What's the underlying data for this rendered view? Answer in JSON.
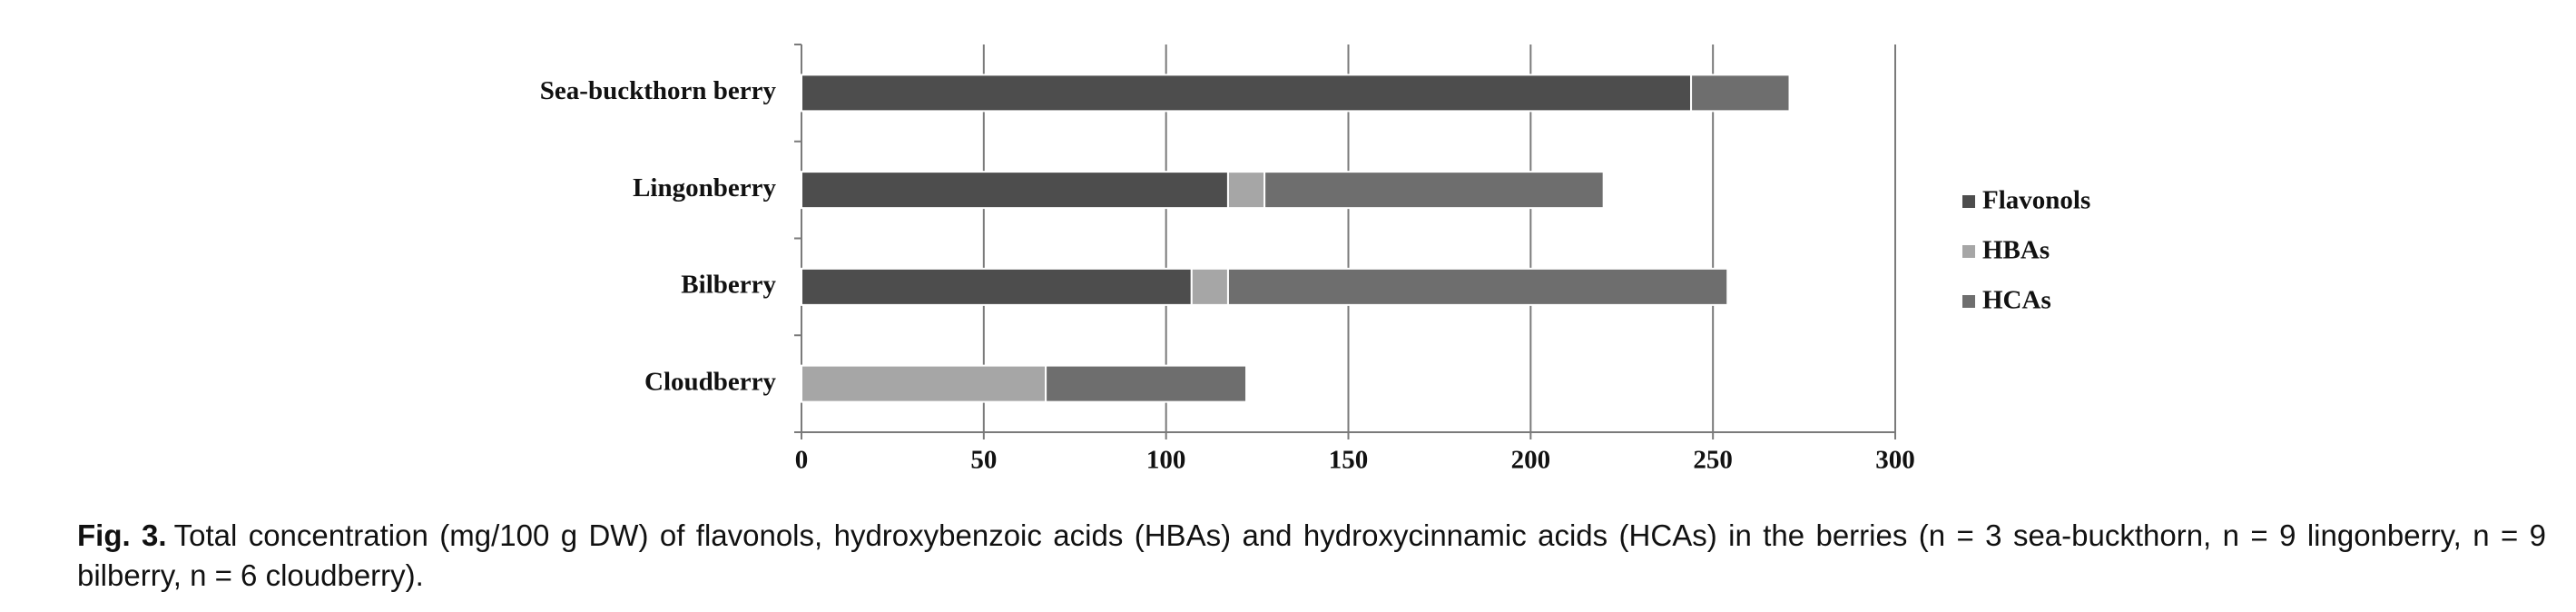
{
  "chart_data": {
    "type": "stacked_barh",
    "categories": [
      "Sea-buckthorn berry",
      "Lingonberry",
      "Bilberry",
      "Cloudberry"
    ],
    "series": [
      {
        "name": "Flavonols",
        "color": "#4d4d4d",
        "values": [
          244,
          117,
          107,
          0
        ]
      },
      {
        "name": "HBAs",
        "color": "#a6a6a6",
        "values": [
          0,
          10,
          10,
          67
        ]
      },
      {
        "name": "HCAs",
        "color": "#6e6e6e",
        "values": [
          27,
          93,
          137,
          55
        ]
      }
    ],
    "xlim": [
      0,
      300
    ],
    "xticks": [
      0,
      50,
      100,
      150,
      200,
      250,
      300
    ],
    "grid": true,
    "legend": "right"
  },
  "caption": {
    "label": "Fig. 3.",
    "text": "Total concentration (mg/100 g DW) of flavonols, hydroxybenzoic acids (HBAs) and hydroxycinnamic acids (HCAs) in the berries (n = 3 sea-buckthorn, n = 9 lingonberry, n = 9 bilberry, n = 6 cloudberry)."
  }
}
